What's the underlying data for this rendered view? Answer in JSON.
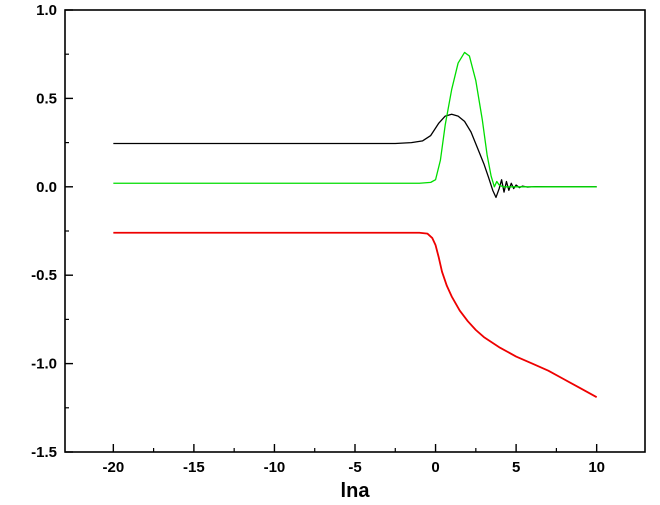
{
  "chart_data": {
    "type": "line",
    "title": "",
    "xlabel": "lna",
    "ylabel": "",
    "xlim": [
      -23,
      13
    ],
    "ylim": [
      -1.5,
      1.0
    ],
    "x_ticks": [
      "-20",
      "-15",
      "-10",
      "-5",
      "0",
      "5",
      "10"
    ],
    "y_ticks": [
      "1.0",
      "0.5",
      "0.0",
      "-0.5",
      "-1.0",
      "-1.5"
    ],
    "grid": false,
    "legend": "none",
    "series": [
      {
        "color": "#000000",
        "points": [
          [
            -20,
            0.245
          ],
          [
            -5,
            0.245
          ],
          [
            -2.5,
            0.245
          ],
          [
            -1.5,
            0.25
          ],
          [
            -0.8,
            0.26
          ],
          [
            -0.3,
            0.29
          ],
          [
            0.2,
            0.36
          ],
          [
            0.6,
            0.4
          ],
          [
            1.0,
            0.41
          ],
          [
            1.4,
            0.4
          ],
          [
            1.8,
            0.37
          ],
          [
            2.2,
            0.31
          ],
          [
            2.6,
            0.22
          ],
          [
            3.0,
            0.13
          ],
          [
            3.3,
            0.05
          ],
          [
            3.55,
            -0.02
          ],
          [
            3.75,
            -0.06
          ],
          [
            3.95,
            -0.01
          ],
          [
            4.1,
            0.04
          ],
          [
            4.25,
            -0.03
          ],
          [
            4.4,
            0.03
          ],
          [
            4.55,
            -0.02
          ],
          [
            4.7,
            0.02
          ],
          [
            4.85,
            -0.01
          ],
          [
            5.0,
            0.01
          ],
          [
            5.2,
            -0.005
          ],
          [
            5.4,
            0.004
          ],
          [
            5.7,
            -0.002
          ],
          [
            6.2,
            0.001
          ],
          [
            7,
            0.0
          ],
          [
            10,
            0.0
          ]
        ]
      },
      {
        "color": "#00dd00",
        "points": [
          [
            -20,
            0.02
          ],
          [
            -1,
            0.02
          ],
          [
            -0.3,
            0.025
          ],
          [
            0,
            0.04
          ],
          [
            0.3,
            0.15
          ],
          [
            0.6,
            0.35
          ],
          [
            1.0,
            0.55
          ],
          [
            1.4,
            0.7
          ],
          [
            1.8,
            0.76
          ],
          [
            2.1,
            0.74
          ],
          [
            2.5,
            0.6
          ],
          [
            2.9,
            0.38
          ],
          [
            3.2,
            0.18
          ],
          [
            3.45,
            0.06
          ],
          [
            3.65,
            0.0
          ],
          [
            3.8,
            0.03
          ],
          [
            3.95,
            0.01
          ],
          [
            4.2,
            0.0
          ],
          [
            10,
            0.0
          ]
        ]
      },
      {
        "color": "#ee0000",
        "points": [
          [
            -20,
            -0.26
          ],
          [
            -1,
            -0.26
          ],
          [
            -0.5,
            -0.265
          ],
          [
            -0.2,
            -0.29
          ],
          [
            0,
            -0.33
          ],
          [
            0.2,
            -0.4
          ],
          [
            0.4,
            -0.48
          ],
          [
            0.7,
            -0.56
          ],
          [
            1.0,
            -0.62
          ],
          [
            1.5,
            -0.7
          ],
          [
            2,
            -0.76
          ],
          [
            2.5,
            -0.81
          ],
          [
            3,
            -0.85
          ],
          [
            4,
            -0.91
          ],
          [
            5,
            -0.96
          ],
          [
            6,
            -1.0
          ],
          [
            7,
            -1.04
          ],
          [
            8,
            -1.09
          ],
          [
            9,
            -1.14
          ],
          [
            10,
            -1.19
          ]
        ]
      }
    ]
  }
}
